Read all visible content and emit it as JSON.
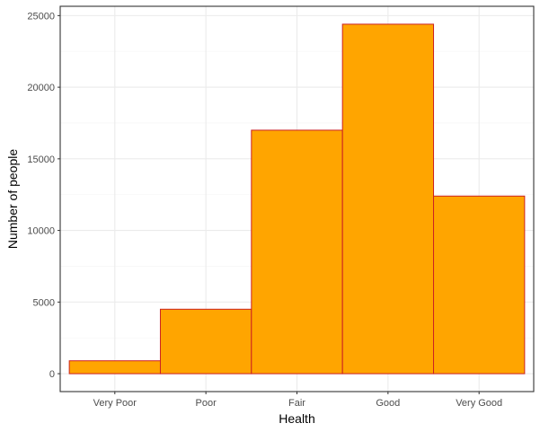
{
  "chart_data": {
    "type": "bar",
    "categories": [
      "Very Poor",
      "Poor",
      "Fair",
      "Good",
      "Very Good"
    ],
    "values": [
      900,
      4500,
      17000,
      24400,
      12400
    ],
    "title": "",
    "xlabel": "Health",
    "ylabel": "Number of people",
    "ylim": [
      -1250,
      25650
    ],
    "yticks": [
      0,
      5000,
      10000,
      15000,
      20000,
      25000
    ],
    "grid": true,
    "legend": "none",
    "colors": {
      "bar_fill": "#FFA500",
      "bar_stroke": "#CC2222",
      "grid_major": "#EBEBEB",
      "grid_minor": "#F5F5F5",
      "panel_border": "#333333"
    }
  }
}
